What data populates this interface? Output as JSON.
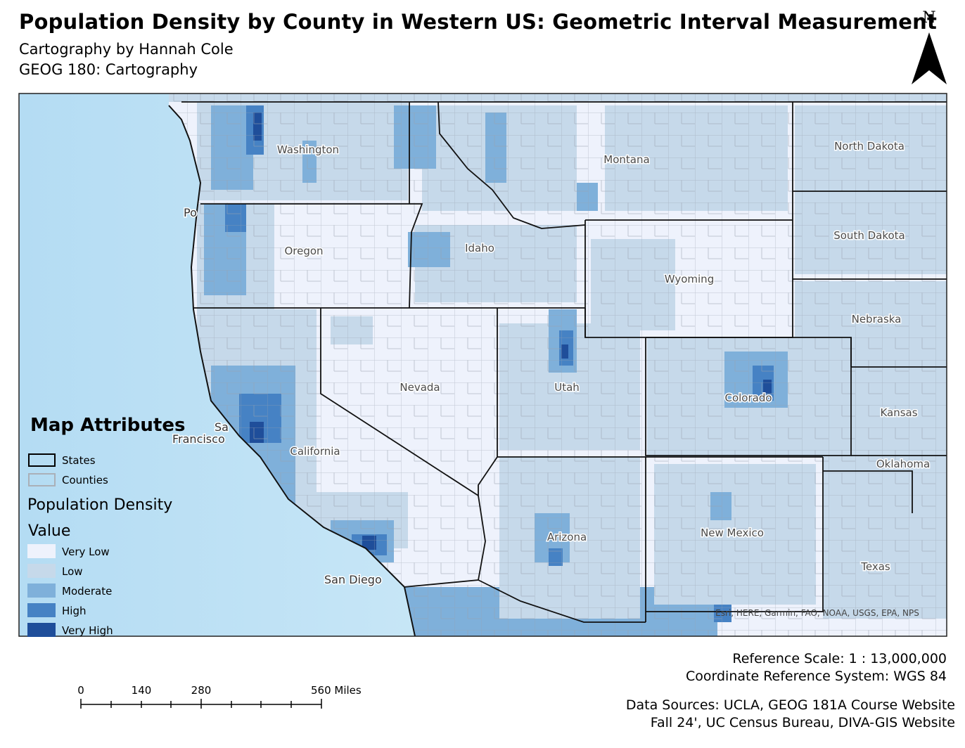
{
  "header": {
    "title": "Population Density by County in Western US: Geometric Interval Measurement",
    "subtitle": [
      "Cartography by Hannah Cole",
      "GEOG 180: Cartography"
    ]
  },
  "north_arrow": {
    "label": "N"
  },
  "map": {
    "state_labels": [
      "Washington",
      "Oregon",
      "Idaho",
      "Montana",
      "Wyoming",
      "North Dakota",
      "South Dakota",
      "Nebraska",
      "Nevada",
      "Utah",
      "Colorado",
      "Kansas",
      "California",
      "Arizona",
      "New Mexico",
      "Oklahoma",
      "Texas"
    ],
    "place_labels": [
      "Po",
      "Sa",
      "Francisco",
      "San Diego"
    ],
    "attribution": "Esri, HERE, Garmin, FAO, NOAA, USGS, EPA, NPS"
  },
  "legend": {
    "title": "Map Attributes",
    "layers": [
      "States",
      "Counties"
    ],
    "density_title": "Population Density",
    "value_title": "Value",
    "classes": [
      {
        "label": "Very Low",
        "color": "#eef2fc"
      },
      {
        "label": "Low",
        "color": "#c6d9ea"
      },
      {
        "label": "Moderate",
        "color": "#7fb0da"
      },
      {
        "label": "High",
        "color": "#4682c4"
      },
      {
        "label": "Very High",
        "color": "#1f4e9a"
      }
    ]
  },
  "scale_bar": {
    "labels": [
      "0",
      "140",
      "280",
      "560 Miles"
    ]
  },
  "footer": {
    "reference_scale": "Reference Scale:  1 : 13,000,000",
    "crs": "Coordinate Reference System: WGS 84",
    "data_sources": [
      "Data Sources: UCLA, GEOG 181A Course Website",
      "Fall 24', UC Census Bureau, DIVA-GIS Website"
    ]
  }
}
